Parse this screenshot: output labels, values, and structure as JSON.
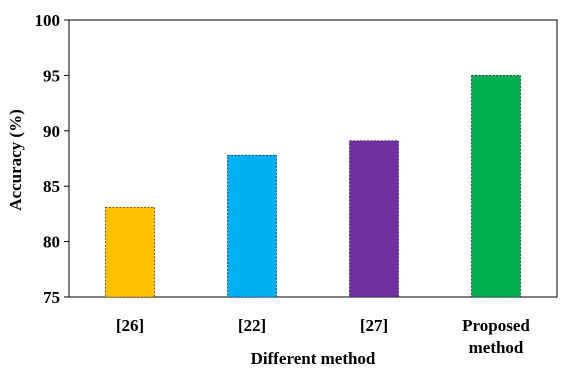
{
  "chart_data": {
    "type": "bar",
    "categories": [
      [
        "[26]"
      ],
      [
        "[22]"
      ],
      [
        "[27]"
      ],
      [
        "Proposed",
        "method"
      ]
    ],
    "values": [
      83.1,
      87.8,
      89.1,
      95.0
    ],
    "colors": [
      "#FFC000",
      "#00B0F0",
      "#7030A0",
      "#00B050"
    ],
    "title": "",
    "xlabel": "Different method",
    "ylabel": "Accuracy (%)",
    "ylim": [
      75,
      100
    ],
    "yticks": [
      75,
      80,
      85,
      90,
      95,
      100
    ],
    "grid": false,
    "legend": "none"
  }
}
